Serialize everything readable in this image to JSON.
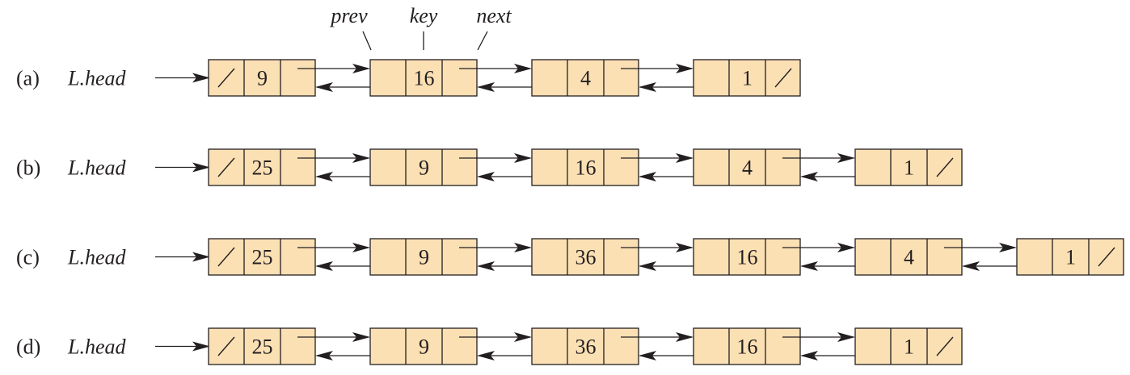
{
  "field_labels": {
    "prev": "prev",
    "key": "key",
    "next": "next"
  },
  "colors": {
    "node_fill": "#fbe0b4",
    "ink": "#231f20"
  },
  "rows": [
    {
      "label": "(a)",
      "head": "L.head",
      "keys": [
        "9",
        "16",
        "4",
        "1"
      ]
    },
    {
      "label": "(b)",
      "head": "L.head",
      "keys": [
        "25",
        "9",
        "16",
        "4",
        "1"
      ]
    },
    {
      "label": "(c)",
      "head": "L.head",
      "keys": [
        "25",
        "9",
        "36",
        "16",
        "4",
        "1"
      ]
    },
    {
      "label": "(d)",
      "head": "L.head",
      "keys": [
        "25",
        "9",
        "36",
        "16",
        "1"
      ]
    }
  ]
}
